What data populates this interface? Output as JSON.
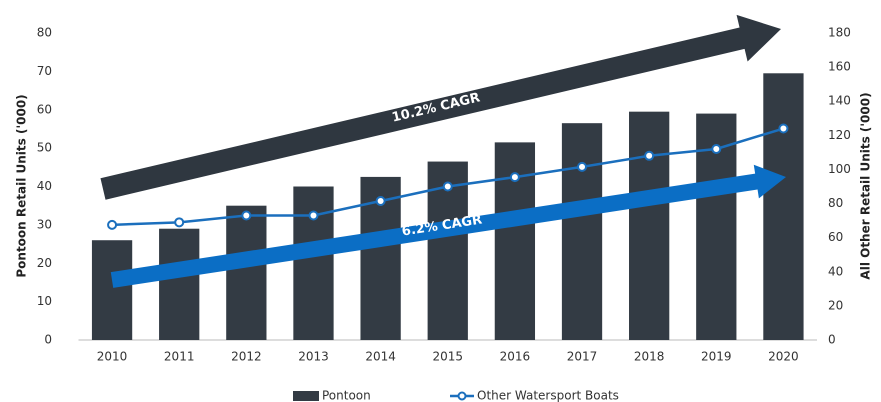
{
  "chart_data": {
    "type": "bar",
    "categories": [
      "2010",
      "2011",
      "2012",
      "2013",
      "2014",
      "2015",
      "2016",
      "2017",
      "2018",
      "2019",
      "2020"
    ],
    "series": [
      {
        "name": "Pontoon",
        "type": "bar",
        "color": "#333b44",
        "values": [
          26,
          29,
          35,
          40,
          42.5,
          46.5,
          51.5,
          56.5,
          59.5,
          59,
          69.5
        ]
      },
      {
        "name": "Other Watersport Boats",
        "type": "line",
        "axis": "y2",
        "color": "#1b6fbd",
        "values": [
          67.5,
          69,
          73,
          73,
          81.5,
          90,
          95.5,
          101.5,
          108,
          112,
          124
        ]
      }
    ],
    "ylabel": "Pontoon Retail Units ('000)",
    "y2label": "All Other Retail Units ('000)",
    "ylim": [
      0,
      80
    ],
    "yticks": [
      0,
      10,
      20,
      30,
      40,
      50,
      60,
      70,
      80
    ],
    "y2lim": [
      0,
      180
    ],
    "y2ticks": [
      0,
      20,
      40,
      60,
      80,
      100,
      120,
      140,
      160,
      180
    ],
    "annotations": [
      "10.2% CAGR",
      "6.2% CAGR"
    ],
    "legend": "bottom"
  }
}
